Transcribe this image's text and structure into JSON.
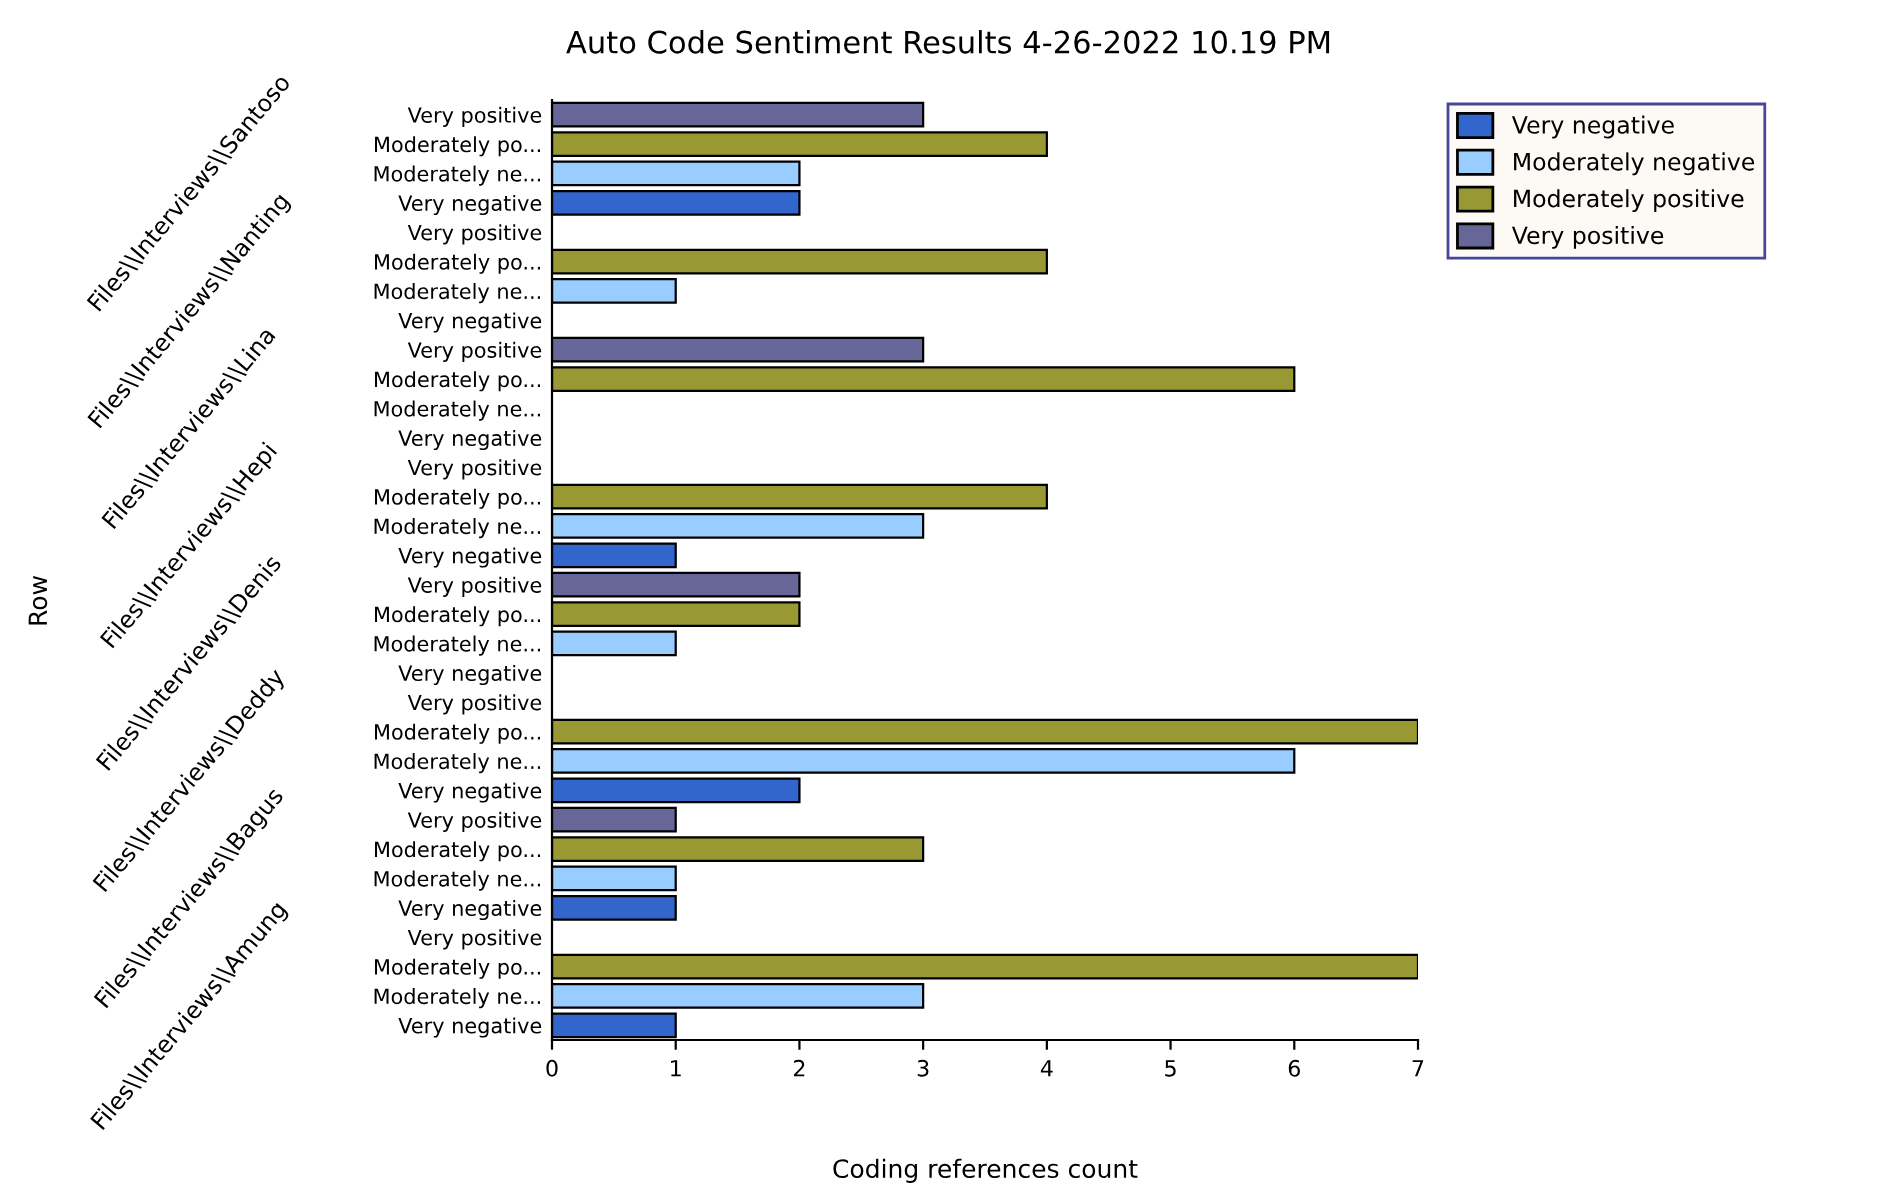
{
  "chart_data": {
    "type": "bar",
    "orientation": "horizontal",
    "title": "Auto Code Sentiment Results 4-26-2022 10.19 PM",
    "xlabel": "Coding references count",
    "categories": [
      "Very positive",
      "Moderately po...",
      "Moderately ne...",
      "Very negative",
      "Very positive",
      "Moderately po...",
      "Moderately ne...",
      "Very negative",
      "Very positive",
      "Moderately po...",
      "Moderately ne...",
      "Very negative",
      "Very positive",
      "Moderately po...",
      "Moderately ne...",
      "Very negative",
      "Very positive",
      "Moderately po...",
      "Moderately ne...",
      "Very negative",
      "Very positive",
      "Moderately po...",
      "Moderately ne...",
      "Very negative",
      "Very positive",
      "Moderately po...",
      "Moderately ne...",
      "Very negative",
      "Very positive",
      "Moderately po...",
      "Moderately ne...",
      "Very negative"
    ],
    "series": [
      {
        "name": "Very negative",
        "color": "#3366cc",
        "values": [
          null,
          null,
          null,
          2,
          null,
          null,
          null,
          null,
          null,
          null,
          null,
          null,
          null,
          null,
          null,
          1,
          null,
          null,
          null,
          null,
          null,
          null,
          null,
          2,
          null,
          null,
          null,
          1,
          null,
          null,
          null,
          1
        ]
      },
      {
        "name": "Moderately negative",
        "color": "#99ccff",
        "values": [
          null,
          null,
          2,
          null,
          null,
          null,
          1,
          null,
          null,
          null,
          null,
          null,
          null,
          null,
          3,
          null,
          null,
          null,
          1,
          null,
          null,
          null,
          6,
          null,
          null,
          null,
          1,
          null,
          null,
          null,
          3,
          null
        ]
      },
      {
        "name": "Moderately positive",
        "color": "#999933",
        "values": [
          null,
          4,
          null,
          null,
          null,
          4,
          null,
          null,
          null,
          6,
          null,
          null,
          null,
          4,
          null,
          null,
          null,
          2,
          null,
          null,
          null,
          7,
          null,
          null,
          null,
          3,
          null,
          null,
          null,
          7,
          null,
          null
        ]
      },
      {
        "name": "Very positive",
        "color": "#666699",
        "values": [
          3,
          null,
          null,
          null,
          null,
          null,
          null,
          null,
          3,
          null,
          null,
          null,
          null,
          null,
          null,
          null,
          2,
          null,
          null,
          null,
          null,
          null,
          null,
          null,
          1,
          null,
          null,
          null,
          null,
          null,
          null,
          null
        ]
      }
    ],
    "annotations": [
      "Row",
      "Files\\\\Interviews\\\\Santoso",
      "Files\\\\Interviews\\\\Nanting",
      "Files\\\\Interviews\\\\Lina",
      "Files\\\\Interviews\\\\Hepi",
      "Files\\\\Interviews\\\\Denis",
      "Files\\\\Interviews\\\\Deddy",
      "Files\\\\Interviews\\\\Bagus",
      "Files\\\\Interviews\\\\Amung"
    ],
    "xlim": [
      0,
      7
    ],
    "xticks": [
      0,
      1,
      2,
      3,
      4,
      5,
      6,
      7
    ],
    "legend": "right"
  }
}
